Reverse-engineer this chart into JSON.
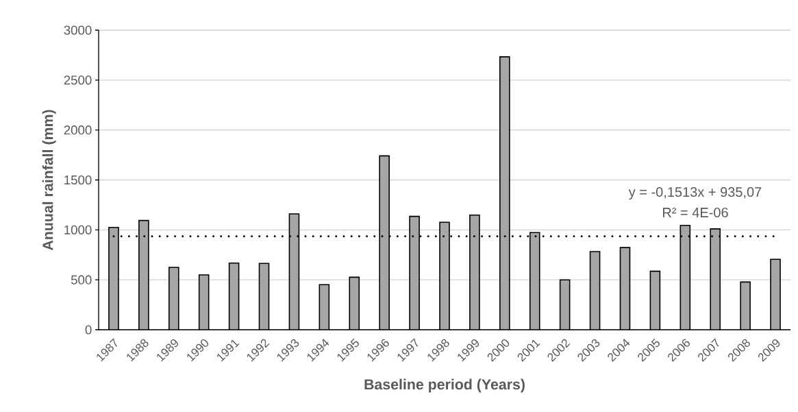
{
  "chart_data": {
    "type": "bar",
    "xlabel": "Baseline period (Years)",
    "ylabel": "Anuual rainfall (mm)",
    "categories": [
      "1987",
      "1988",
      "1989",
      "1990",
      "1991",
      "1992",
      "1993",
      "1994",
      "1995",
      "1996",
      "1997",
      "1998",
      "1999",
      "2000",
      "2001",
      "2002",
      "2003",
      "2004",
      "2005",
      "2006",
      "2007",
      "2008",
      "2009"
    ],
    "values": [
      1025,
      1094,
      625,
      549,
      668,
      664,
      1160,
      451,
      526,
      1741,
      1135,
      1076,
      1148,
      2733,
      973,
      499,
      783,
      823,
      586,
      1045,
      1010,
      478,
      705
    ],
    "color": "#a6a6a6",
    "ylim": [
      0,
      3000
    ],
    "yticks": [
      0,
      500,
      1000,
      1500,
      2000,
      2500,
      3000
    ],
    "grid": "y",
    "ref_lines": [
      {
        "axis": "y",
        "value": 935,
        "line_style": "dotted",
        "color": "#000000"
      }
    ],
    "annotations": [
      "y = -0,1513x + 935,07",
      "R² = 4E-06"
    ]
  }
}
